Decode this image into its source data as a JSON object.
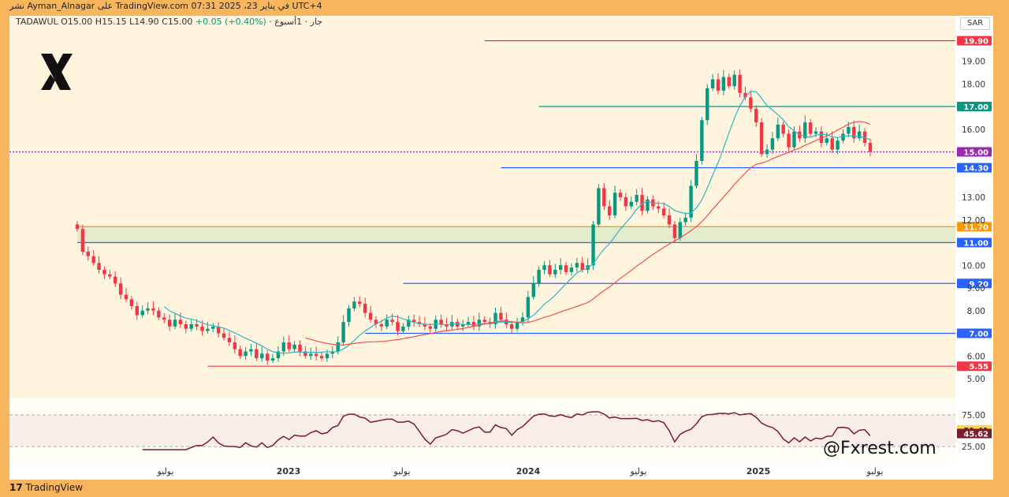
{
  "header": {
    "publish_line": "نشر Ayman_Alnagar على TradingView.com في يناير 23، 2025 07:31 UTC+4",
    "symbol_line": "جار · 1أسبوع · TADAWUL",
    "ohlc": "O15.00 H15.15 L14.90 C15.00",
    "change": "+0.05 (+0.40%)"
  },
  "currency": "SAR",
  "branding": {
    "footer": "TradingView",
    "handle": "@Fxrest.com",
    "logo_icon": "x-logo-icon"
  },
  "colors": {
    "up": "#089981",
    "down": "#f23645",
    "ma_fast": "#2ab8c9",
    "ma_slow": "#ef5350",
    "zone": "#dce8c6",
    "rsi": "#7b1c2a"
  },
  "chart_data": {
    "type": "candlestick",
    "y_ticks": [
      19.0,
      18.0,
      16.0,
      13.0,
      12.0,
      10.0,
      9.0,
      8.0,
      6.0,
      5.0
    ],
    "y_tick_labels": [
      "19.00",
      "18.00",
      "16.00",
      "13.00",
      "12.00",
      "10.00",
      "9.00",
      "8.00",
      "6.00",
      "5.00"
    ],
    "ylim": [
      4.6,
      20.3
    ],
    "x_labels": [
      "يوليو",
      "2023",
      "يوليو",
      "2024",
      "يوليو",
      "2025",
      "يوليو"
    ],
    "levels": [
      {
        "label": "19.90",
        "value": 19.9,
        "color": "#f23645",
        "start": 75
      },
      {
        "label": "17.00",
        "value": 17.0,
        "color": "#089981",
        "start": 85
      },
      {
        "label": "15.00",
        "value": 15.0,
        "color": "#9c27b0",
        "start": 0
      },
      {
        "label": "14.30",
        "value": 14.3,
        "color": "#2962ff",
        "start": 78
      },
      {
        "label": "11.70",
        "value": 11.7,
        "color": "#ff9800",
        "start": 0
      },
      {
        "label": "11.00",
        "value": 11.0,
        "color": "#2962ff",
        "start": 0
      },
      {
        "label": "9.20",
        "value": 9.2,
        "color": "#2962ff",
        "start": 60
      },
      {
        "label": "7.00",
        "value": 7.0,
        "color": "#2962ff",
        "start": 53
      },
      {
        "label": "5.55",
        "value": 5.55,
        "color": "#f23645",
        "start": 24
      }
    ],
    "zone": {
      "from": 11.0,
      "to": 11.7
    },
    "closes": [
      11.6,
      10.6,
      10.4,
      10.1,
      9.8,
      9.6,
      9.5,
      9.2,
      8.7,
      8.5,
      8.2,
      7.8,
      8.0,
      8.1,
      8.0,
      7.7,
      7.6,
      7.3,
      7.6,
      7.4,
      7.2,
      7.4,
      7.3,
      7.1,
      7.2,
      7.3,
      7.0,
      6.8,
      6.6,
      6.3,
      6.0,
      6.2,
      6.3,
      5.9,
      6.1,
      5.8,
      5.9,
      6.2,
      6.6,
      6.3,
      6.5,
      6.2,
      6.0,
      6.1,
      6.0,
      5.9,
      6.1,
      6.2,
      6.6,
      7.5,
      8.1,
      8.4,
      8.3,
      7.9,
      7.6,
      7.4,
      7.3,
      7.6,
      7.5,
      7.1,
      7.3,
      7.6,
      7.5,
      7.4,
      7.3,
      7.2,
      7.6,
      7.4,
      7.3,
      7.5,
      7.3,
      7.4,
      7.5,
      7.3,
      7.6,
      7.5,
      7.4,
      7.9,
      7.6,
      7.4,
      7.2,
      7.5,
      7.7,
      8.6,
      9.2,
      9.8,
      10.0,
      9.6,
      9.8,
      10.0,
      9.7,
      9.9,
      10.1,
      9.8,
      10.0,
      11.8,
      13.4,
      12.6,
      12.2,
      13.2,
      13.0,
      12.6,
      12.8,
      13.1,
      12.4,
      12.9,
      12.6,
      12.5,
      12.2,
      11.8,
      11.2,
      11.9,
      12.1,
      13.5,
      14.6,
      16.4,
      17.8,
      18.2,
      17.7,
      18.3,
      17.9,
      18.4,
      17.6,
      17.4,
      16.9,
      16.3,
      14.9,
      15.1,
      15.6,
      16.2,
      15.8,
      15.2,
      15.9,
      15.6,
      16.3,
      15.8,
      15.9,
      15.4,
      15.6,
      15.1,
      15.5,
      15.8,
      16.1,
      15.6,
      15.9,
      15.4,
      15.0
    ],
    "rsi": {
      "levels": [
        75.0,
        25.0
      ],
      "tick_labels": [
        "75.00",
        "25.00"
      ],
      "values": [
        51.41,
        45.62
      ],
      "value_labels": [
        "51.41",
        "45.62"
      ]
    }
  }
}
